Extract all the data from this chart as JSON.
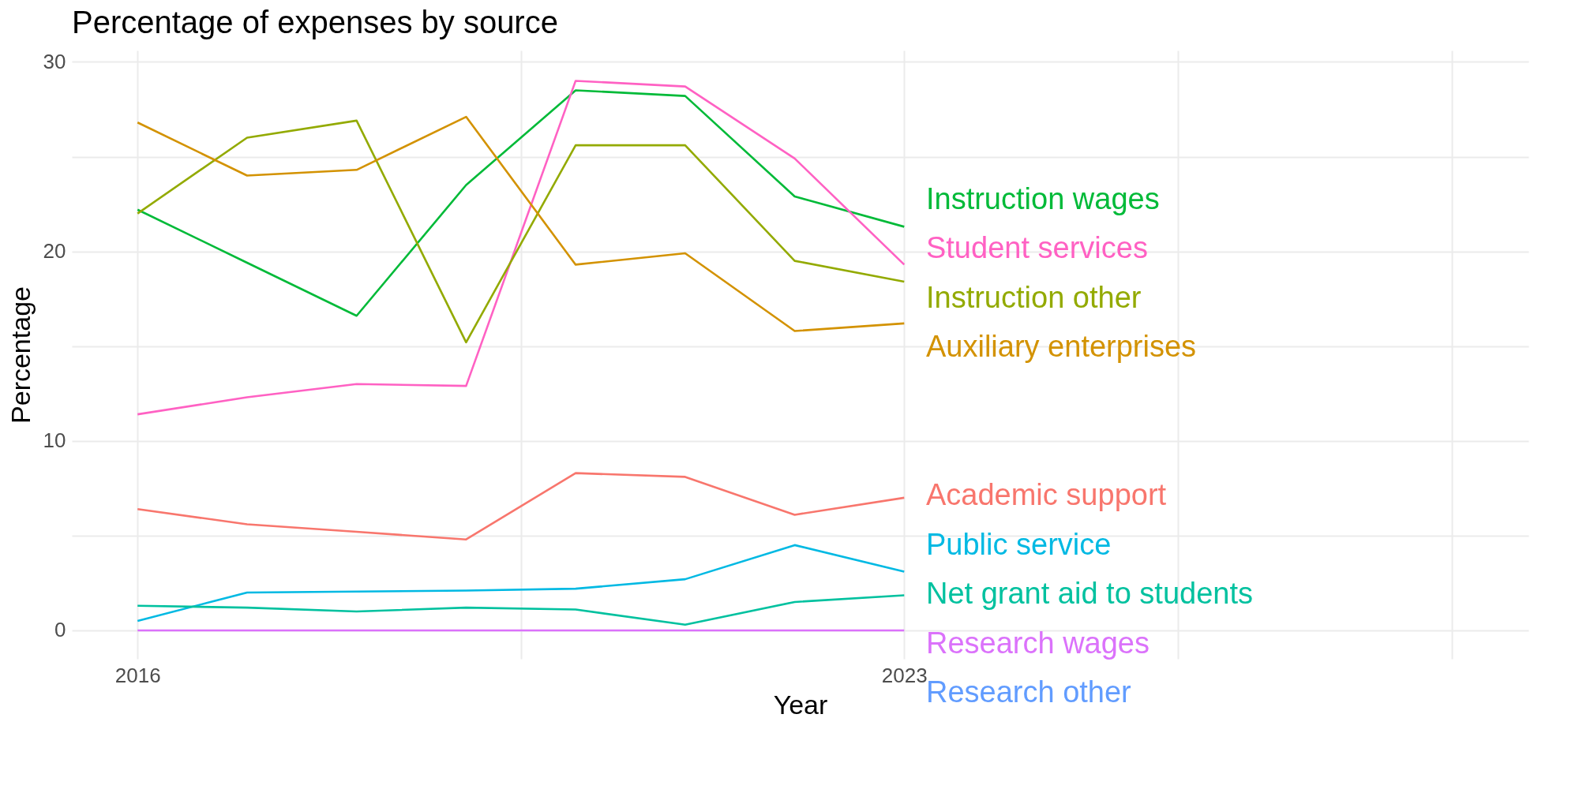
{
  "chart_data": {
    "type": "line",
    "title": "Percentage of expenses by source",
    "xlabel": "Year",
    "ylabel": "Percentage",
    "x": [
      2016,
      2017,
      2018,
      2019,
      2020,
      2021,
      2022,
      2023
    ],
    "xlim": [
      2015.4,
      2028.7
    ],
    "xticks": [
      2016,
      {
        "value": 2019.5,
        "label": null
      },
      2023,
      {
        "value": 2025.5,
        "label": null
      },
      {
        "value": 2028,
        "label": null
      }
    ],
    "ylim": [
      -1.5,
      30.6
    ],
    "yticks": [
      0,
      {
        "value": 5,
        "label": null
      },
      10,
      {
        "value": 15,
        "label": null
      },
      20,
      {
        "value": 25,
        "label": null
      },
      30
    ],
    "grid": true,
    "legend": false,
    "series": [
      {
        "name": "Instruction wages",
        "color": "#00ba38",
        "values": [
          22.2,
          19.4,
          16.6,
          23.5,
          28.5,
          28.2,
          22.9,
          21.3
        ]
      },
      {
        "name": "Student services",
        "color": "#ff61c3",
        "values": [
          11.4,
          12.3,
          13.0,
          12.9,
          29.0,
          28.7,
          24.9,
          19.3
        ]
      },
      {
        "name": "Instruction other",
        "color": "#93aa00",
        "values": [
          22.0,
          26.0,
          26.9,
          15.2,
          25.6,
          25.6,
          19.5,
          18.4
        ]
      },
      {
        "name": "Auxiliary enterprises",
        "color": "#d39200",
        "values": [
          26.8,
          24.0,
          24.3,
          27.1,
          19.3,
          19.9,
          15.8,
          16.2
        ]
      },
      {
        "name": "Academic support",
        "color": "#f8766d",
        "values": [
          6.4,
          5.6,
          5.2,
          4.8,
          8.3,
          8.1,
          6.1,
          7.0
        ]
      },
      {
        "name": "Public service",
        "color": "#00b9e3",
        "values": [
          0.5,
          2.0,
          2.05,
          2.1,
          2.2,
          2.7,
          4.5,
          3.1
        ]
      },
      {
        "name": "Net grant aid to students",
        "color": "#00c19f",
        "values": [
          1.3,
          1.2,
          1.0,
          1.2,
          1.1,
          0.3,
          1.5,
          1.85
        ]
      },
      {
        "name": "Research wages",
        "color": "#db72fb",
        "values": [
          0,
          0,
          0,
          0,
          0,
          0,
          0,
          0
        ]
      },
      {
        "name": "Research other",
        "color": "#619cff",
        "values": [
          null,
          null,
          null,
          null,
          null,
          null,
          null,
          null
        ]
      }
    ]
  }
}
